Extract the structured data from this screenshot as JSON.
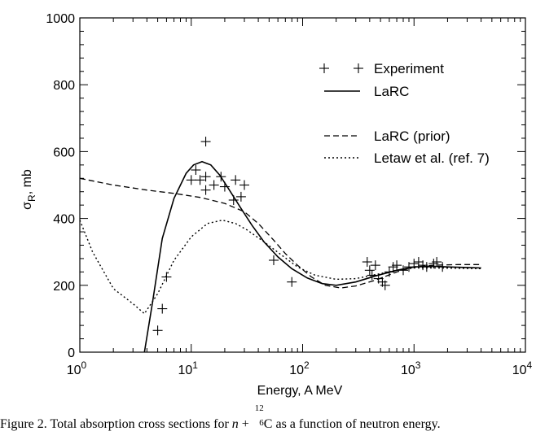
{
  "chart_data": {
    "type": "scatter",
    "xscale": "log",
    "xlim": [
      1,
      10000
    ],
    "ylim": [
      0,
      1000
    ],
    "xlabel": "Energy, A MeV",
    "ylabel": {
      "main": "σ",
      "sub": "R",
      "unit": ", mb"
    },
    "x_ticks": [
      {
        "base": "10",
        "exp": "0",
        "value": 1
      },
      {
        "base": "10",
        "exp": "1",
        "value": 10
      },
      {
        "base": "10",
        "exp": "2",
        "value": 100
      },
      {
        "base": "10",
        "exp": "3",
        "value": 1000
      },
      {
        "base": "10",
        "exp": "4",
        "value": 10000
      }
    ],
    "y_ticks": [
      {
        "label": "0",
        "value": 0
      },
      {
        "label": "200",
        "value": 200
      },
      {
        "label": "400",
        "value": 400
      },
      {
        "label": "600",
        "value": 600
      },
      {
        "label": "800",
        "value": 800
      },
      {
        "label": "1000",
        "value": 1000
      }
    ],
    "legend_position": "top-right",
    "series": [
      {
        "name": "Experiment",
        "style": "plus",
        "points": [
          [
            5,
            65
          ],
          [
            5.5,
            130
          ],
          [
            6,
            225
          ],
          [
            10,
            515
          ],
          [
            11,
            545
          ],
          [
            12,
            515
          ],
          [
            13.5,
            630
          ],
          [
            13.5,
            525
          ],
          [
            13.5,
            485
          ],
          [
            16,
            500
          ],
          [
            18.5,
            525
          ],
          [
            20,
            495
          ],
          [
            24,
            455
          ],
          [
            25,
            515
          ],
          [
            28,
            465
          ],
          [
            30,
            500
          ],
          [
            55,
            275
          ],
          [
            80,
            210
          ],
          [
            380,
            270
          ],
          [
            400,
            245
          ],
          [
            420,
            230
          ],
          [
            450,
            260
          ],
          [
            480,
            220
          ],
          [
            520,
            210
          ],
          [
            550,
            200
          ],
          [
            600,
            240
          ],
          [
            650,
            255
          ],
          [
            700,
            260
          ],
          [
            800,
            245
          ],
          [
            900,
            255
          ],
          [
            1000,
            265
          ],
          [
            1100,
            270
          ],
          [
            1200,
            260
          ],
          [
            1300,
            255
          ],
          [
            1500,
            265
          ],
          [
            1600,
            270
          ],
          [
            1800,
            255
          ]
        ]
      },
      {
        "name": "LaRC",
        "style": "solid",
        "points": [
          [
            3.8,
            0
          ],
          [
            4.5,
            150
          ],
          [
            5.5,
            340
          ],
          [
            7,
            460
          ],
          [
            9,
            535
          ],
          [
            10.5,
            560
          ],
          [
            12.5,
            570
          ],
          [
            15,
            560
          ],
          [
            18,
            530
          ],
          [
            22,
            485
          ],
          [
            28,
            430
          ],
          [
            35,
            380
          ],
          [
            45,
            330
          ],
          [
            60,
            285
          ],
          [
            80,
            250
          ],
          [
            110,
            222
          ],
          [
            150,
            205
          ],
          [
            200,
            200
          ],
          [
            300,
            210
          ],
          [
            450,
            228
          ],
          [
            700,
            245
          ],
          [
            1000,
            255
          ],
          [
            1500,
            257
          ],
          [
            2000,
            255
          ],
          [
            4000,
            252
          ]
        ]
      },
      {
        "name": "LaRC (prior)",
        "style": "dashed",
        "points": [
          [
            1,
            520
          ],
          [
            2,
            500
          ],
          [
            4,
            485
          ],
          [
            7,
            475
          ],
          [
            12,
            463
          ],
          [
            20,
            445
          ],
          [
            30,
            420
          ],
          [
            40,
            385
          ],
          [
            55,
            335
          ],
          [
            70,
            295
          ],
          [
            90,
            260
          ],
          [
            120,
            225
          ],
          [
            160,
            200
          ],
          [
            220,
            192
          ],
          [
            300,
            198
          ],
          [
            450,
            215
          ],
          [
            700,
            240
          ],
          [
            1000,
            255
          ],
          [
            1500,
            260
          ],
          [
            2500,
            262
          ],
          [
            4000,
            262
          ]
        ]
      },
      {
        "name": "Letaw et al. (ref. 7)",
        "style": "dotted",
        "points": [
          [
            1,
            395
          ],
          [
            1.3,
            300
          ],
          [
            2,
            190
          ],
          [
            3,
            145
          ],
          [
            3.8,
            115
          ],
          [
            5,
            175
          ],
          [
            7,
            275
          ],
          [
            10,
            345
          ],
          [
            14,
            385
          ],
          [
            19,
            395
          ],
          [
            25,
            385
          ],
          [
            32,
            365
          ],
          [
            45,
            330
          ],
          [
            65,
            290
          ],
          [
            90,
            255
          ],
          [
            130,
            230
          ],
          [
            200,
            218
          ],
          [
            300,
            220
          ],
          [
            450,
            232
          ],
          [
            700,
            245
          ],
          [
            1000,
            252
          ],
          [
            1500,
            252
          ],
          [
            4000,
            250
          ]
        ]
      }
    ]
  },
  "caption": {
    "prefix": "Figure 2.  Total absorption cross sections for ",
    "var": "n",
    "plus": " + ",
    "mass": "12",
    "charge": "6",
    "element": "C",
    "suffix": "  as a function of neutron energy."
  }
}
